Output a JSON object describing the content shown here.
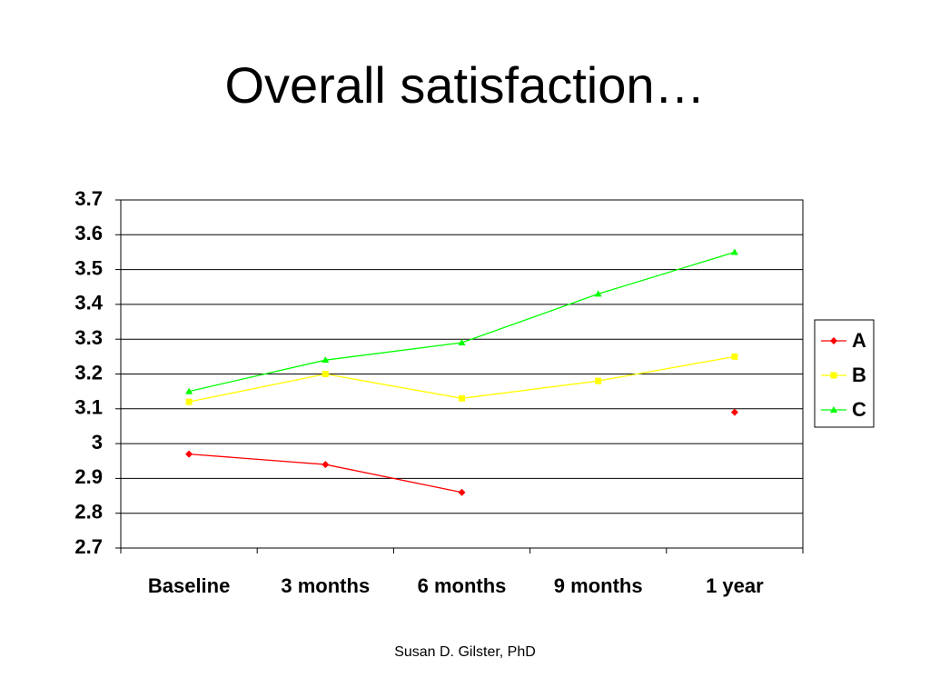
{
  "chart_data": {
    "type": "line",
    "title": "Overall satisfaction…",
    "categories": [
      "Baseline",
      "3 months",
      "6 months",
      "9 months",
      "1 year"
    ],
    "series": [
      {
        "name": "A",
        "color": "#ff0000",
        "marker": "diamond",
        "values": [
          2.97,
          2.94,
          2.86,
          null,
          3.09
        ]
      },
      {
        "name": "B",
        "color": "#ffff00",
        "marker": "square",
        "values": [
          3.12,
          3.2,
          3.13,
          3.18,
          3.25
        ]
      },
      {
        "name": "C",
        "color": "#00ff00",
        "marker": "triangle",
        "values": [
          3.15,
          3.24,
          3.29,
          3.43,
          3.55
        ]
      }
    ],
    "ylim": [
      2.7,
      3.7
    ],
    "yticks": [
      2.7,
      2.8,
      2.9,
      3,
      3.1,
      3.2,
      3.3,
      3.4,
      3.5,
      3.6,
      3.7
    ],
    "grid": true,
    "legend": "right"
  },
  "footer": "Susan D. Gilster, PhD"
}
